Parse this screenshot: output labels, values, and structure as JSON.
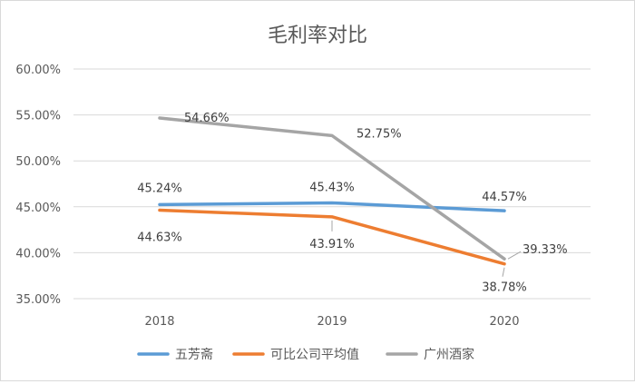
{
  "chart_data": {
    "type": "line",
    "title": "毛利率对比",
    "xlabel": "",
    "ylabel": "",
    "categories": [
      "2018",
      "2019",
      "2020"
    ],
    "ylim": [
      35,
      60
    ],
    "yticks": [
      35,
      40,
      45,
      50,
      55,
      60
    ],
    "ytick_labels": [
      "35.00%",
      "40.00%",
      "45.00%",
      "50.00%",
      "55.00%",
      "60.00%"
    ],
    "grid": true,
    "legend_position": "bottom",
    "series": [
      {
        "name": "五芳斋",
        "color": "#5b9bd5",
        "values": [
          45.24,
          45.43,
          44.57
        ],
        "labels": [
          "45.24%",
          "45.43%",
          "44.57%"
        ]
      },
      {
        "name": "可比公司平均值",
        "color": "#ed7d31",
        "values": [
          44.63,
          43.91,
          38.78
        ],
        "labels": [
          "44.63%",
          "43.91%",
          "38.78%"
        ]
      },
      {
        "name": "广州酒家",
        "color": "#a5a5a5",
        "values": [
          54.66,
          52.75,
          39.33
        ],
        "labels": [
          "54.66%",
          "52.75%",
          "39.33%"
        ]
      }
    ]
  }
}
